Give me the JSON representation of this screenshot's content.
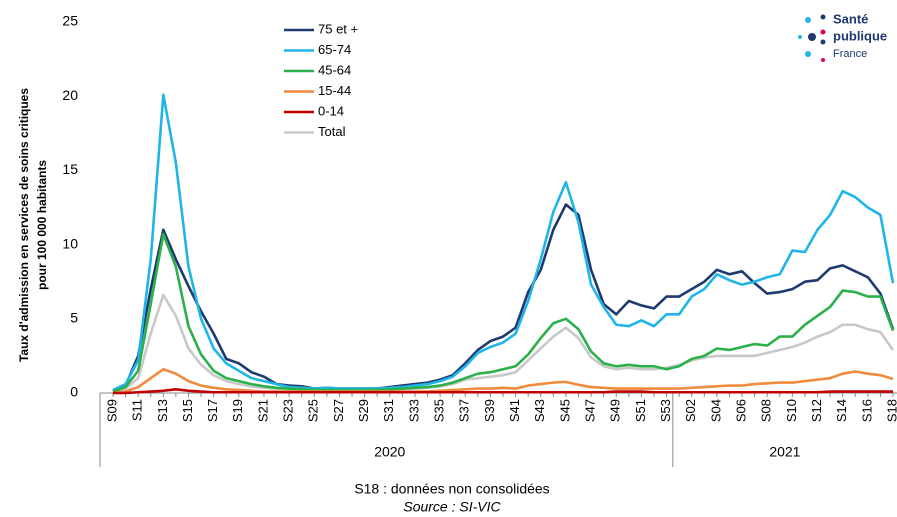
{
  "chart_data": {
    "type": "line",
    "y_title": [
      "Taux d'admission en services de soins critiques",
      "pour 100 000 habitants"
    ],
    "note": "S18 : données non consolidées",
    "source": "Source : SI-VIC",
    "logo": [
      "Santé",
      "publique",
      "France"
    ],
    "categories": [
      "S09",
      null,
      "S11",
      null,
      "S13",
      null,
      "S15",
      null,
      "S17",
      null,
      "S19",
      null,
      "S21",
      null,
      "S23",
      null,
      "S25",
      null,
      "S27",
      null,
      "S29",
      null,
      "S31",
      null,
      "S33",
      null,
      "S35",
      null,
      "S37",
      null,
      "S39",
      null,
      "S41",
      null,
      "S43",
      null,
      "S45",
      null,
      "S47",
      null,
      "S49",
      null,
      "S51",
      null,
      "S53",
      null,
      "S02",
      null,
      "S04",
      null,
      "S06",
      null,
      "S08",
      null,
      "S10",
      null,
      "S12",
      null,
      "S14",
      null,
      "S16",
      null,
      "S18"
    ],
    "year_groups": [
      {
        "label": "2020",
        "count": 45
      },
      {
        "label": "2021",
        "count": 18
      }
    ],
    "ylim": [
      0,
      25
    ],
    "yticks": [
      0,
      5,
      10,
      15,
      20,
      25
    ],
    "series": [
      {
        "name": "75 et +",
        "color": "#1f3a6e",
        "values": [
          0.1,
          0.5,
          2.5,
          7,
          11,
          9,
          7.2,
          5.5,
          4,
          2.3,
          2,
          1.4,
          1.1,
          0.6,
          0.5,
          0.45,
          0.3,
          0.35,
          0.3,
          0.3,
          0.3,
          0.3,
          0.4,
          0.5,
          0.6,
          0.7,
          0.9,
          1.2,
          2,
          2.9,
          3.5,
          3.8,
          4.4,
          6.8,
          8.3,
          11,
          12.7,
          12,
          8.3,
          6,
          5.3,
          6.2,
          5.9,
          5.7,
          6.5,
          6.5,
          7,
          7.5,
          8.3,
          8,
          8.2,
          7.4,
          6.7,
          6.8,
          7,
          7.5,
          7.6,
          8.4,
          8.6,
          8.2,
          7.8,
          6.7,
          4.3
        ]
      },
      {
        "name": "65-74",
        "color": "#1fb5e8",
        "values": [
          0.2,
          0.6,
          2.2,
          9,
          20.1,
          15.5,
          8.5,
          5,
          3,
          2,
          1.5,
          1,
          0.8,
          0.6,
          0.4,
          0.35,
          0.3,
          0.35,
          0.3,
          0.3,
          0.3,
          0.3,
          0.35,
          0.4,
          0.5,
          0.6,
          0.8,
          1.1,
          1.8,
          2.7,
          3.1,
          3.4,
          4,
          6.2,
          9,
          12.2,
          14.2,
          11.5,
          7.3,
          5.8,
          4.6,
          4.5,
          4.9,
          4.5,
          5.3,
          5.3,
          6.5,
          7,
          8,
          7.6,
          7.3,
          7.5,
          7.8,
          8,
          9.6,
          9.5,
          11,
          12,
          13.6,
          13.2,
          12.5,
          12,
          7.4
        ]
      },
      {
        "name": "45-64",
        "color": "#2bb04a",
        "values": [
          0.1,
          0.4,
          1.5,
          6,
          10.7,
          8.5,
          4.5,
          2.6,
          1.5,
          1,
          0.8,
          0.6,
          0.45,
          0.35,
          0.3,
          0.25,
          0.2,
          0.2,
          0.2,
          0.2,
          0.2,
          0.2,
          0.25,
          0.3,
          0.35,
          0.4,
          0.5,
          0.7,
          1,
          1.3,
          1.4,
          1.6,
          1.8,
          2.6,
          3.7,
          4.7,
          5,
          4.3,
          2.8,
          2,
          1.8,
          1.9,
          1.8,
          1.8,
          1.6,
          1.8,
          2.3,
          2.5,
          3,
          2.9,
          3.1,
          3.3,
          3.2,
          3.8,
          3.8,
          4.6,
          5.2,
          5.8,
          6.9,
          6.8,
          6.5,
          6.5,
          4.2
        ]
      },
      {
        "name": "15-44",
        "color": "#f08a3c",
        "values": [
          0,
          0.1,
          0.4,
          1,
          1.6,
          1.3,
          0.8,
          0.5,
          0.35,
          0.25,
          0.2,
          0.15,
          0.1,
          0.1,
          0.1,
          0.1,
          0.1,
          0.1,
          0.1,
          0.1,
          0.1,
          0.1,
          0.1,
          0.1,
          0.1,
          0.1,
          0.15,
          0.2,
          0.25,
          0.3,
          0.3,
          0.35,
          0.3,
          0.5,
          0.6,
          0.7,
          0.75,
          0.55,
          0.4,
          0.35,
          0.3,
          0.3,
          0.3,
          0.3,
          0.3,
          0.3,
          0.35,
          0.4,
          0.45,
          0.5,
          0.5,
          0.6,
          0.65,
          0.7,
          0.7,
          0.8,
          0.9,
          1,
          1.3,
          1.45,
          1.3,
          1.2,
          0.95
        ]
      },
      {
        "name": "0-14",
        "color": "#c00000",
        "values": [
          0,
          0,
          0.05,
          0.1,
          0.15,
          0.25,
          0.15,
          0.1,
          0.05,
          0.05,
          0.05,
          0.05,
          0.05,
          0.05,
          0.05,
          0.05,
          0.05,
          0.05,
          0.05,
          0.05,
          0.05,
          0.05,
          0.05,
          0.05,
          0.05,
          0.05,
          0.05,
          0.05,
          0.05,
          0.05,
          0.05,
          0.05,
          0.05,
          0.05,
          0.05,
          0.05,
          0.05,
          0.05,
          0.05,
          0.05,
          0.1,
          0.1,
          0.1,
          0.05,
          0.05,
          0.05,
          0.05,
          0.05,
          0.05,
          0.05,
          0.05,
          0.05,
          0.05,
          0.05,
          0.05,
          0.05,
          0.05,
          0.1,
          0.1,
          0.1,
          0.1,
          0.1,
          0.1
        ]
      },
      {
        "name": "Total",
        "color": "#c8c8c8",
        "values": [
          0.1,
          0.3,
          1,
          4,
          6.6,
          5.2,
          3,
          1.9,
          1.2,
          0.8,
          0.6,
          0.45,
          0.35,
          0.3,
          0.25,
          0.2,
          0.2,
          0.2,
          0.2,
          0.2,
          0.2,
          0.2,
          0.2,
          0.25,
          0.3,
          0.35,
          0.45,
          0.6,
          0.9,
          1,
          1.1,
          1.2,
          1.4,
          2.2,
          3,
          3.8,
          4.4,
          3.7,
          2.4,
          1.8,
          1.6,
          1.7,
          1.6,
          1.6,
          1.7,
          1.9,
          2.2,
          2.4,
          2.5,
          2.5,
          2.5,
          2.5,
          2.7,
          2.9,
          3.1,
          3.4,
          3.8,
          4.1,
          4.6,
          4.6,
          4.3,
          4.1,
          2.9
        ]
      }
    ]
  }
}
